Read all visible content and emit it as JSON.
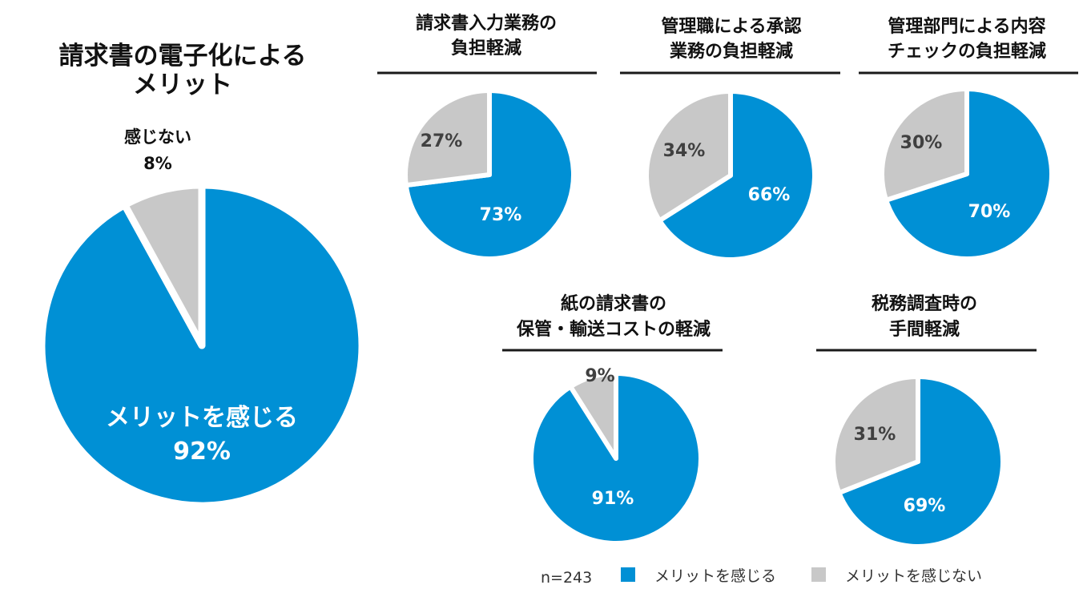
{
  "chart_data": [
    {
      "type": "pie",
      "title": "請求書の電子化による\nメリット",
      "categories": [
        "メリットを感じる",
        "感じない"
      ],
      "values": [
        92,
        8
      ],
      "labels": [
        "メリットを感じる\n92%",
        "感じない\n8%"
      ]
    },
    {
      "type": "pie",
      "title": "請求書入力業務の\n負担軽減",
      "categories": [
        "メリットを感じる",
        "メリットを感じない"
      ],
      "values": [
        73,
        27
      ],
      "labels": [
        "73%",
        "27%"
      ]
    },
    {
      "type": "pie",
      "title": "管理職による承認\n業務の負担軽減",
      "categories": [
        "メリットを感じる",
        "メリットを感じない"
      ],
      "values": [
        66,
        34
      ],
      "labels": [
        "66%",
        "34%"
      ]
    },
    {
      "type": "pie",
      "title": "管理部門による内容\nチェックの負担軽減",
      "categories": [
        "メリットを感じる",
        "メリットを感じない"
      ],
      "values": [
        70,
        30
      ],
      "labels": [
        "70%",
        "30%"
      ]
    },
    {
      "type": "pie",
      "title": "紙の請求書の\n保管・輸送コストの軽減",
      "categories": [
        "メリットを感じる",
        "メリットを感じない"
      ],
      "values": [
        91,
        9
      ],
      "labels": [
        "91%",
        "9%"
      ]
    },
    {
      "type": "pie",
      "title": "税務調査時の\n手間軽減",
      "categories": [
        "メリットを感じる",
        "メリットを感じない"
      ],
      "values": [
        69,
        31
      ],
      "labels": [
        "69%",
        "31%"
      ]
    }
  ],
  "legend": {
    "note": "n=243",
    "items": [
      {
        "label": "メリットを感じる",
        "color": "#0090d5"
      },
      {
        "label": "メリットを感じない",
        "color": "#c8c8c8"
      }
    ]
  },
  "colors": {
    "positive": "#0090d5",
    "negative": "#c8c8c8"
  }
}
